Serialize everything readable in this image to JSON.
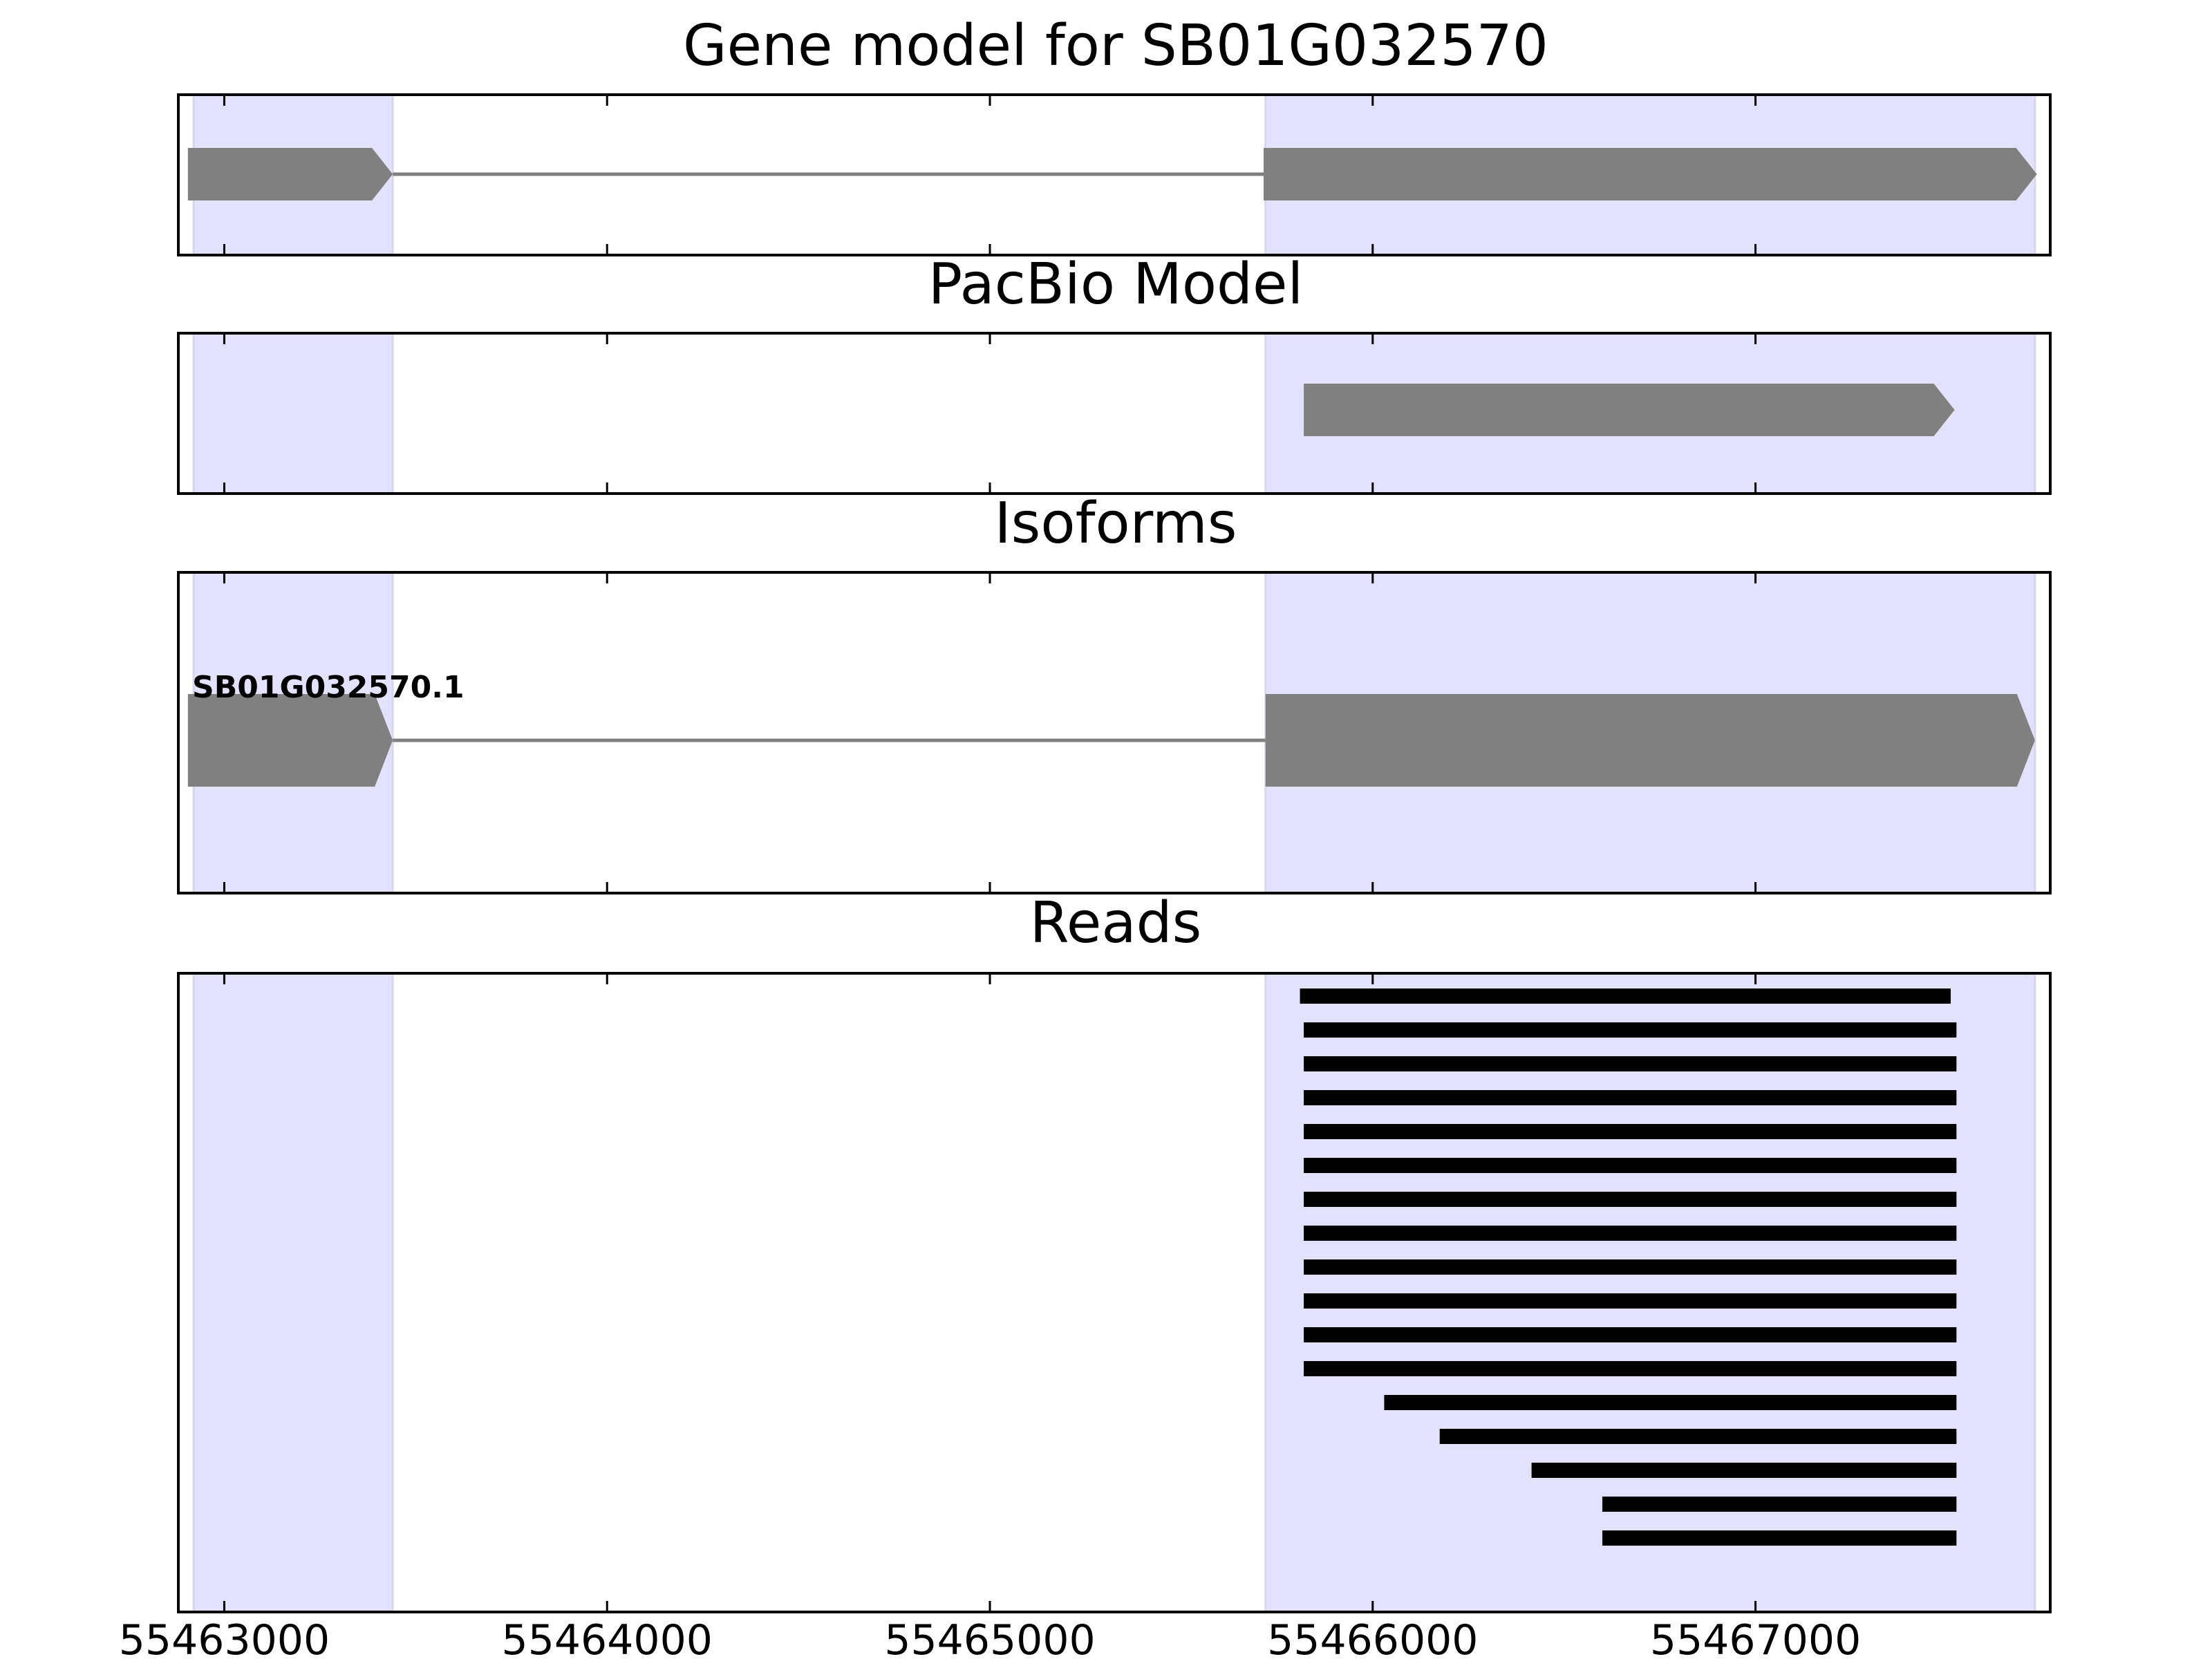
{
  "colors": {
    "exon_highlight": "#e2e2fc",
    "exon_highlight_edge": "#d6d6ee",
    "gene_shape": "#808080",
    "intron_line": "#808080",
    "read": "#000000",
    "axes": "#000000"
  },
  "chart_data": {
    "type": "gene_model_tracks",
    "xlim": [
      55462880,
      55467770
    ],
    "x_ticks": [
      55463000,
      55464000,
      55465000,
      55466000,
      55467000
    ],
    "x_tick_labels": [
      "55463000",
      "55464000",
      "55465000",
      "55466000",
      "55467000"
    ],
    "exon_regions": [
      [
        55462920,
        55463440
      ],
      [
        55465720,
        55467730
      ]
    ],
    "panels": [
      {
        "id": "gene",
        "title": "Gene model for SB01G032570",
        "features": [
          {
            "kind": "exon",
            "start": 55462905,
            "end": 55463440,
            "strand": "+"
          },
          {
            "kind": "intron",
            "start": 55463440,
            "end": 55465715
          },
          {
            "kind": "exon",
            "start": 55465715,
            "end": 55467735,
            "strand": "+"
          }
        ]
      },
      {
        "id": "pacbio",
        "title": "PacBio Model",
        "features": [
          {
            "kind": "exon",
            "start": 55465820,
            "end": 55467520,
            "strand": "+"
          }
        ]
      },
      {
        "id": "isoforms",
        "title": "Isoforms",
        "isoform_label": "SB01G032570.1",
        "features": [
          {
            "kind": "exon",
            "start": 55462905,
            "end": 55463440,
            "strand": "+"
          },
          {
            "kind": "intron",
            "start": 55463440,
            "end": 55465720
          },
          {
            "kind": "exon",
            "start": 55465720,
            "end": 55467730,
            "strand": "+"
          }
        ]
      },
      {
        "id": "reads",
        "title": "Reads",
        "reads": [
          {
            "start": 55465810,
            "end": 55467510
          },
          {
            "start": 55465820,
            "end": 55467525
          },
          {
            "start": 55465820,
            "end": 55467525
          },
          {
            "start": 55465820,
            "end": 55467525
          },
          {
            "start": 55465820,
            "end": 55467525
          },
          {
            "start": 55465820,
            "end": 55467525
          },
          {
            "start": 55465820,
            "end": 55467525
          },
          {
            "start": 55465820,
            "end": 55467525
          },
          {
            "start": 55465820,
            "end": 55467525
          },
          {
            "start": 55465820,
            "end": 55467525
          },
          {
            "start": 55465820,
            "end": 55467525
          },
          {
            "start": 55465820,
            "end": 55467525
          },
          {
            "start": 55466030,
            "end": 55467525
          },
          {
            "start": 55466175,
            "end": 55467525
          },
          {
            "start": 55466415,
            "end": 55467525
          },
          {
            "start": 55466600,
            "end": 55467525
          },
          {
            "start": 55466600,
            "end": 55467525
          }
        ]
      }
    ]
  }
}
